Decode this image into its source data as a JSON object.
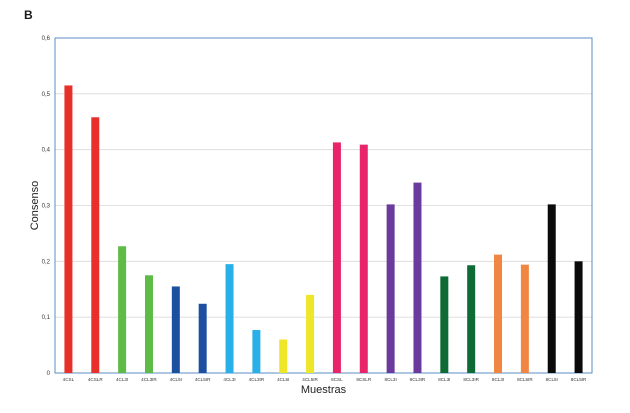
{
  "panel_label": "B",
  "chart_data": {
    "type": "bar",
    "title": "",
    "xlabel": "Muestras",
    "ylabel": "Consenso",
    "ylim": [
      0,
      0.6
    ],
    "yticks": [
      "0",
      "0,1",
      "0,2",
      "0,3",
      "0,4",
      "0,5",
      "0,6"
    ],
    "grid": true,
    "legend": "none",
    "categories": [
      "4CSL",
      "4CSLR",
      "4CL3I",
      "4CL3IR",
      "4CL5I",
      "4CL5IR",
      "4CL3I",
      "4CL3IR",
      "4CL5I",
      "4CL5IR",
      "8CSL",
      "8CSLR",
      "8CL3I",
      "8CL3IR",
      "8CL3I",
      "8CL3IR",
      "8CL3I",
      "8CL5IR",
      "8CL5I",
      "8CL5IR"
    ],
    "values": [
      0.515,
      0.458,
      0.227,
      0.175,
      0.155,
      0.124,
      0.195,
      0.077,
      0.06,
      0.14,
      0.413,
      0.409,
      0.302,
      0.341,
      0.173,
      0.193,
      0.212,
      0.194,
      0.302,
      0.2
    ],
    "colors": [
      "#e8302a",
      "#e8302a",
      "#5dbb46",
      "#5dbb46",
      "#1c4fa0",
      "#1c4fa0",
      "#29b0e8",
      "#29b0e8",
      "#efe62a",
      "#efe62a",
      "#e8246a",
      "#e8246a",
      "#6a3b9c",
      "#6a3b9c",
      "#0e6b35",
      "#0e6b35",
      "#f08642",
      "#f08642",
      "#0a0a0a",
      "#0a0a0a"
    ]
  }
}
